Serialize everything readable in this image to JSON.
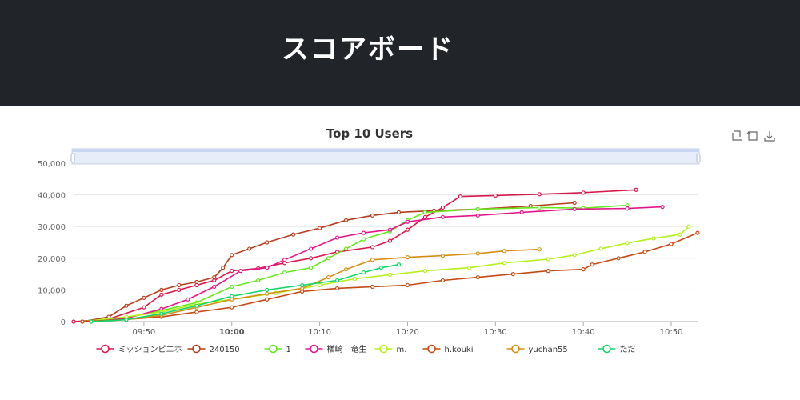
{
  "page": {
    "header_title": "スコアボード"
  },
  "toolbar": {
    "icons": [
      "zoom-icon",
      "zoom-reset-icon",
      "download-icon"
    ]
  },
  "chart_data": {
    "type": "line",
    "title": "Top 10 Users",
    "x_axis": {
      "type": "time",
      "start": "09:42",
      "end": "10:53",
      "ticks": [
        "09:50",
        "10:00",
        "10:10",
        "10:20",
        "10:30",
        "10:40",
        "10:50"
      ]
    },
    "y_axis": {
      "min": 0,
      "max": 50000,
      "ticks": [
        "0",
        "10,000",
        "20,000",
        "30,000",
        "40,000",
        "50,000"
      ]
    },
    "grid": true,
    "legend_position": "bottom",
    "dataZoom": "top slider",
    "series": [
      {
        "name": "ミッションピエホ",
        "color": "#d6194b",
        "points": [
          [
            "09:42",
            0
          ],
          [
            "09:46",
            800
          ],
          [
            "09:50",
            4500
          ],
          [
            "09:52",
            8500
          ],
          [
            "09:54",
            10000
          ],
          [
            "09:56",
            11500
          ],
          [
            "09:58",
            13000
          ],
          [
            "10:00",
            16000
          ],
          [
            "10:03",
            16800
          ],
          [
            "10:06",
            18500
          ],
          [
            "10:09",
            20000
          ],
          [
            "10:12",
            22000
          ],
          [
            "10:16",
            23500
          ],
          [
            "10:18",
            25500
          ],
          [
            "10:20",
            29000
          ],
          [
            "10:22",
            33000
          ],
          [
            "10:24",
            36000
          ],
          [
            "10:26",
            39500
          ],
          [
            "10:30",
            39800
          ],
          [
            "10:35",
            40200
          ],
          [
            "10:40",
            40700
          ],
          [
            "10:46",
            41600
          ]
        ]
      },
      {
        "name": "240150",
        "color": "#b33e1c",
        "points": [
          [
            "09:43",
            0
          ],
          [
            "09:46",
            1500
          ],
          [
            "09:48",
            5000
          ],
          [
            "09:50",
            7500
          ],
          [
            "09:52",
            10000
          ],
          [
            "09:54",
            11500
          ],
          [
            "09:56",
            12500
          ],
          [
            "09:58",
            14000
          ],
          [
            "09:59",
            17000
          ],
          [
            "10:00",
            21000
          ],
          [
            "10:02",
            23000
          ],
          [
            "10:04",
            25000
          ],
          [
            "10:07",
            27500
          ],
          [
            "10:10",
            29500
          ],
          [
            "10:13",
            32000
          ],
          [
            "10:16",
            33500
          ],
          [
            "10:19",
            34500
          ],
          [
            "10:23",
            35000
          ],
          [
            "10:28",
            35500
          ],
          [
            "10:34",
            36500
          ],
          [
            "10:39",
            37500
          ]
        ]
      },
      {
        "name": "1",
        "color": "#66e61e",
        "points": [
          [
            "09:44",
            0
          ],
          [
            "09:48",
            1200
          ],
          [
            "09:52",
            3500
          ],
          [
            "09:56",
            6000
          ],
          [
            "10:00",
            11000
          ],
          [
            "10:03",
            13000
          ],
          [
            "10:06",
            15500
          ],
          [
            "10:09",
            17000
          ],
          [
            "10:11",
            20000
          ],
          [
            "10:13",
            23000
          ],
          [
            "10:15",
            26000
          ],
          [
            "10:18",
            28500
          ],
          [
            "10:20",
            32000
          ],
          [
            "10:22",
            34500
          ],
          [
            "10:28",
            35500
          ],
          [
            "10:35",
            36000
          ],
          [
            "10:40",
            35800
          ],
          [
            "10:45",
            36700
          ]
        ]
      },
      {
        "name": "楢崎　竜生",
        "color": "#e0178c",
        "points": [
          [
            "09:44",
            0
          ],
          [
            "09:48",
            1000
          ],
          [
            "09:52",
            4000
          ],
          [
            "09:55",
            7000
          ],
          [
            "09:58",
            11000
          ],
          [
            "10:01",
            16000
          ],
          [
            "10:04",
            17000
          ],
          [
            "10:06",
            19500
          ],
          [
            "10:09",
            23000
          ],
          [
            "10:12",
            26500
          ],
          [
            "10:15",
            28000
          ],
          [
            "10:18",
            29000
          ],
          [
            "10:20",
            31500
          ],
          [
            "10:24",
            33000
          ],
          [
            "10:28",
            33500
          ],
          [
            "10:33",
            34500
          ],
          [
            "10:39",
            35500
          ],
          [
            "10:45",
            35700
          ],
          [
            "10:49",
            36200
          ]
        ]
      },
      {
        "name": "m.",
        "color": "#b4f01c",
        "points": [
          [
            "09:43",
            0
          ],
          [
            "09:48",
            1500
          ],
          [
            "09:52",
            3000
          ],
          [
            "09:56",
            5500
          ],
          [
            "10:00",
            7000
          ],
          [
            "10:05",
            9000
          ],
          [
            "10:10",
            11500
          ],
          [
            "10:14",
            13500
          ],
          [
            "10:18",
            14800
          ],
          [
            "10:22",
            16000
          ],
          [
            "10:27",
            17000
          ],
          [
            "10:31",
            18500
          ],
          [
            "10:36",
            19700
          ],
          [
            "10:39",
            21000
          ],
          [
            "10:42",
            23000
          ],
          [
            "10:45",
            24800
          ],
          [
            "10:48",
            26300
          ],
          [
            "10:51",
            27500
          ],
          [
            "10:52",
            30000
          ]
        ]
      },
      {
        "name": "h.kouki",
        "color": "#c24a14",
        "points": [
          [
            "09:43",
            0
          ],
          [
            "09:48",
            700
          ],
          [
            "09:52",
            1500
          ],
          [
            "09:56",
            3000
          ],
          [
            "10:00",
            4500
          ],
          [
            "10:04",
            7000
          ],
          [
            "10:08",
            9500
          ],
          [
            "10:12",
            10500
          ],
          [
            "10:16",
            11000
          ],
          [
            "10:20",
            11500
          ],
          [
            "10:24",
            13000
          ],
          [
            "10:28",
            14000
          ],
          [
            "10:32",
            15000
          ],
          [
            "10:36",
            16000
          ],
          [
            "10:40",
            16500
          ],
          [
            "10:41",
            18000
          ],
          [
            "10:44",
            20000
          ],
          [
            "10:47",
            22000
          ],
          [
            "10:50",
            24500
          ],
          [
            "10:53",
            28000
          ]
        ]
      },
      {
        "name": "yuchan55",
        "color": "#d48f12",
        "points": [
          [
            "09:44",
            0
          ],
          [
            "09:48",
            600
          ],
          [
            "09:52",
            2000
          ],
          [
            "09:56",
            4500
          ],
          [
            "10:00",
            7000
          ],
          [
            "10:04",
            8800
          ],
          [
            "10:08",
            10500
          ],
          [
            "10:11",
            14000
          ],
          [
            "10:13",
            16500
          ],
          [
            "10:16",
            19500
          ],
          [
            "10:20",
            20300
          ],
          [
            "10:24",
            20800
          ],
          [
            "10:28",
            21500
          ],
          [
            "10:31",
            22300
          ],
          [
            "10:35",
            22800
          ]
        ]
      },
      {
        "name": "ただ",
        "color": "#12d66a",
        "points": [
          [
            "09:44",
            0
          ],
          [
            "09:48",
            600
          ],
          [
            "09:52",
            2500
          ],
          [
            "09:56",
            5000
          ],
          [
            "10:00",
            8000
          ],
          [
            "10:04",
            10000
          ],
          [
            "10:08",
            11500
          ],
          [
            "10:12",
            13000
          ],
          [
            "10:15",
            15500
          ],
          [
            "10:17",
            17000
          ],
          [
            "10:19",
            18000
          ]
        ]
      }
    ]
  }
}
